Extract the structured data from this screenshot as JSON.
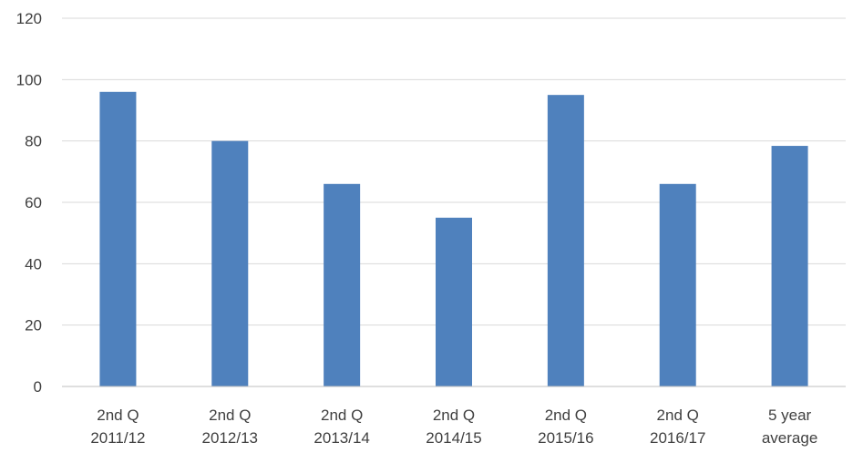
{
  "chart_data": {
    "type": "bar",
    "categories": [
      [
        "2nd Q",
        "2011/12"
      ],
      [
        "2nd Q",
        "2012/13"
      ],
      [
        "2nd Q",
        "2013/14"
      ],
      [
        "2nd Q",
        "2014/15"
      ],
      [
        "2nd Q",
        "2015/16"
      ],
      [
        "2nd Q",
        "2016/17"
      ],
      [
        "5 year",
        "average"
      ]
    ],
    "values": [
      96,
      80,
      66,
      55,
      95,
      66,
      78.4
    ],
    "title": "",
    "xlabel": "",
    "ylabel": "",
    "ylim": [
      0,
      120
    ],
    "yticks": [
      0,
      20,
      40,
      60,
      80,
      100,
      120
    ],
    "grid": true,
    "legend": "none",
    "bar_color": "#4f81bd"
  }
}
